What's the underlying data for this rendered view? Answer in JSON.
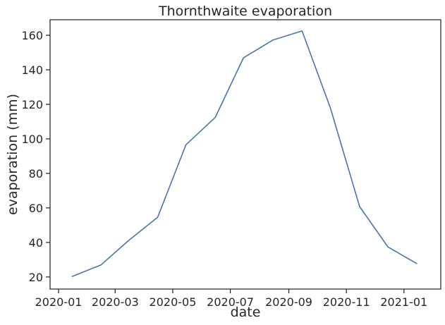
{
  "chart_data": {
    "type": "line",
    "title": "Thornthwaite evaporation",
    "xlabel": "date",
    "ylabel": "evaporation (mm)",
    "x_tick_labels": [
      "2020-01",
      "2020-03",
      "2020-05",
      "2020-07",
      "2020-09",
      "2020-11",
      "2021-01"
    ],
    "x_tick_dates": [
      "2020-01-01",
      "2020-03-01",
      "2020-05-01",
      "2020-07-01",
      "2020-09-01",
      "2020-11-01",
      "2021-01-01"
    ],
    "y_ticks": [
      20,
      40,
      60,
      80,
      100,
      120,
      140,
      160
    ],
    "xlim": [
      "2019-12-23",
      "2021-02-09"
    ],
    "ylim": [
      13,
      169
    ],
    "grid": false,
    "series_color": "#4c72b0",
    "series": [
      {
        "x": [
          "2020-01-15",
          "2020-02-15",
          "2020-03-15",
          "2020-04-15",
          "2020-05-15",
          "2020-06-15",
          "2020-07-15",
          "2020-08-15",
          "2020-09-15",
          "2020-10-15",
          "2020-11-15",
          "2020-12-15",
          "2021-01-15"
        ],
        "values": [
          20.2,
          27.0,
          41.0,
          54.6,
          96.6,
          112.4,
          147.0,
          157.2,
          162.5,
          118.0,
          60.8,
          37.4,
          27.6
        ]
      }
    ]
  }
}
